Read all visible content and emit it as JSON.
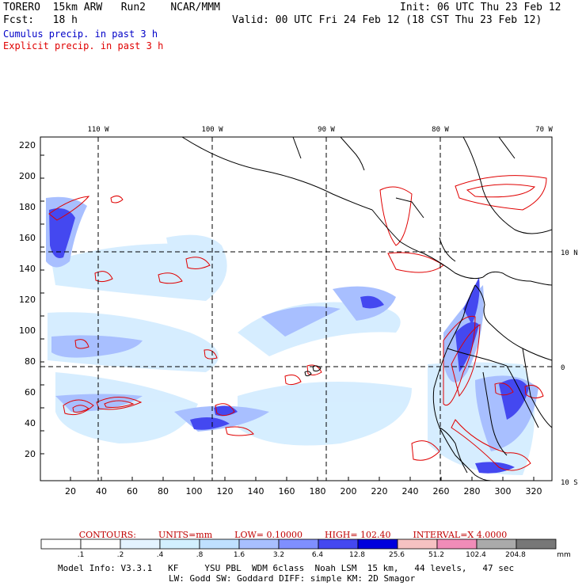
{
  "header": {
    "left_line1": "TORERO  15km ARW   Run2    NCAR/MMM",
    "right_line1": "Init: 06 UTC Thu 23 Feb 12",
    "left_line2": "Fcst:   18 h",
    "right_line2": "Valid: 00 UTC Fri 24 Feb 12 (18 CST Thu 23 Feb 12)",
    "legend_cumulus": "Cumulus precip. in past 3 h",
    "legend_explicit": "Explicit precip. in past 3 h",
    "colors": {
      "cumulus": "#0000c8",
      "explicit": "#e00000"
    }
  },
  "map": {
    "lon_labels": [
      "110 W",
      "100 W",
      "90 W",
      "80 W",
      "70 W"
    ],
    "lat_labels": [
      "10 N",
      "0",
      "10 S"
    ],
    "x_ticks": [
      "20",
      "40",
      "60",
      "80",
      "100",
      "120",
      "140",
      "160",
      "180",
      "200",
      "220",
      "240",
      "260",
      "280",
      "300",
      "320"
    ],
    "y_ticks": [
      "20",
      "40",
      "60",
      "80",
      "100",
      "120",
      "140",
      "160",
      "180",
      "200",
      "220"
    ]
  },
  "contours": {
    "label": "CONTOURS:",
    "units": "UNITS=mm",
    "low": "LOW= 0.10000",
    "high": "HIGH=  102.40",
    "interval": "INTERVAL=X  4.0000"
  },
  "colorbar": {
    "labels": [
      ".1",
      ".2",
      ".4",
      ".8",
      "1.6",
      "3.2",
      "6.4",
      "12.8",
      "25.6",
      "51.2",
      "102.4",
      "204.8"
    ],
    "unit": "mm",
    "colors": [
      "#ffffff",
      "#ffffff",
      "#e4f3ff",
      "#d2f0ff",
      "#bfe0ff",
      "#a8bfff",
      "#7f8fff",
      "#4448f0",
      "#0000dd",
      "#f6c2c2",
      "#f08cb8",
      "#aaaaaa",
      "#777777",
      "#333333",
      "#d8a8f8"
    ]
  },
  "footer": {
    "line1": "Model Info: V3.3.1   KF     YSU PBL  WDM 6class  Noah LSM  15 km,   44 levels,   47 sec",
    "line2": "LW: Godd SW: Goddard DIFF: simple KM: 2D Smagor"
  }
}
